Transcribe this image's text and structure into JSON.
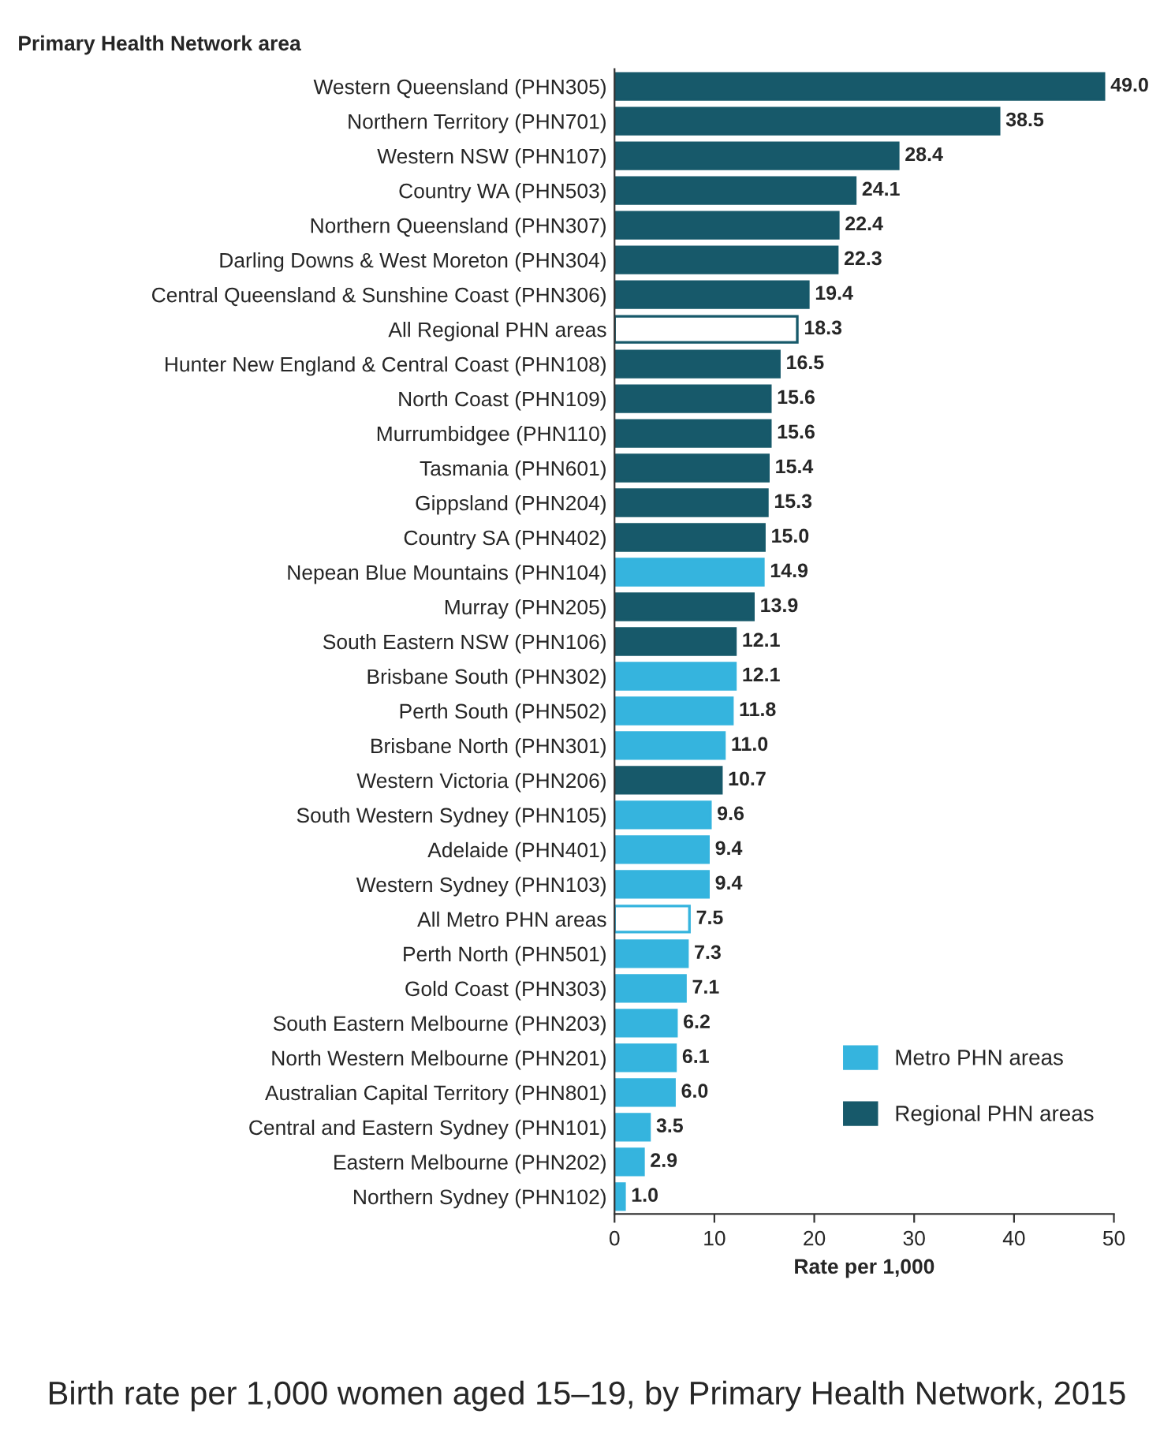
{
  "chart_data": {
    "type": "bar",
    "orientation": "horizontal",
    "title": "Birth rate per 1,000 women aged 15–19, by Primary Health Network, 2015",
    "ylabel": "Primary Health Network area",
    "xlabel": "Rate per 1,000",
    "categories": [
      "Western Queensland (PHN305)",
      "Northern Territory (PHN701)",
      "Western NSW (PHN107)",
      "Country WA (PHN503)",
      "Northern Queensland (PHN307)",
      "Darling Downs & West Moreton (PHN304)",
      "Central Queensland & Sunshine Coast (PHN306)",
      "All Regional PHN areas",
      "Hunter New England & Central Coast (PHN108)",
      "North Coast (PHN109)",
      "Murrumbidgee (PHN110)",
      "Tasmania (PHN601)",
      "Gippsland (PHN204)",
      "Country SA (PHN402)",
      "Nepean Blue Mountains (PHN104)",
      "Murray (PHN205)",
      "South Eastern NSW (PHN106)",
      "Brisbane South (PHN302)",
      "Perth South (PHN502)",
      "Brisbane North (PHN301)",
      "Western Victoria (PHN206)",
      "South Western Sydney (PHN105)",
      "Adelaide (PHN401)",
      "Western Sydney (PHN103)",
      "All Metro PHN areas",
      "Perth North (PHN501)",
      "Gold Coast (PHN303)",
      "South Eastern Melbourne (PHN203)",
      "North Western Melbourne (PHN201)",
      "Australian Capital Territory (PHN801)",
      "Central and Eastern Sydney (PHN101)",
      "Eastern Melbourne (PHN202)",
      "Northern Sydney (PHN102)"
    ],
    "series": [
      {
        "name": "Metro PHN areas",
        "color": "#35b4de",
        "values": [
          null,
          null,
          null,
          null,
          null,
          null,
          null,
          null,
          null,
          null,
          null,
          null,
          null,
          null,
          14.9,
          null,
          null,
          12.1,
          11.8,
          11.0,
          null,
          9.6,
          9.4,
          9.4,
          7.5,
          7.3,
          7.1,
          6.2,
          6.1,
          6.0,
          3.5,
          2.9,
          1.0
        ],
        "value_labels": [
          null,
          null,
          null,
          null,
          null,
          null,
          null,
          null,
          null,
          null,
          null,
          null,
          null,
          null,
          "14.9",
          null,
          null,
          "12.1",
          "11.8",
          "11.0",
          null,
          "9.6",
          "9.4",
          "9.4",
          "7.5",
          "7.3",
          "7.1",
          "6.2",
          "6.1",
          "6.0",
          "3.5",
          "2.9",
          "1.0"
        ],
        "colors": [
          null,
          null,
          null,
          null,
          null,
          null,
          null,
          null,
          null,
          null,
          null,
          null,
          null,
          null,
          "#35b4de",
          null,
          null,
          "#35b4de",
          "#35b4de",
          "#35b4de",
          null,
          "#35b4de",
          "#35b4de",
          "#35b4de",
          "#ffffff",
          "#35b4de",
          "#35b4de",
          "#35b4de",
          "#35b4de",
          "#35b4de",
          "#35b4de",
          "#35b4de",
          "#35b4de"
        ]
      },
      {
        "name": "Regional PHN areas",
        "color": "#17596a",
        "values": [
          49.0,
          38.5,
          28.4,
          24.1,
          22.4,
          22.3,
          19.4,
          18.3,
          16.5,
          15.6,
          15.6,
          15.4,
          15.3,
          15.0,
          null,
          13.9,
          12.1,
          null,
          null,
          null,
          10.7,
          null,
          null,
          null,
          null,
          null,
          null,
          null,
          null,
          null,
          null,
          null,
          null
        ],
        "value_labels": [
          "49.0",
          "38.5",
          "28.4",
          "24.1",
          "22.4",
          "22.3",
          "19.4",
          "18.3",
          "16.5",
          "15.6",
          "15.6",
          "15.4",
          "15.3",
          "15.0",
          null,
          "13.9",
          "12.1",
          null,
          null,
          null,
          "10.7",
          null,
          null,
          null,
          null,
          null,
          null,
          null,
          null,
          null,
          null,
          null,
          null
        ],
        "colors": [
          "#17596a",
          "#17596a",
          "#17596a",
          "#17596a",
          "#17596a",
          "#17596a",
          "#17596a",
          "#ffffff",
          "#17596a",
          "#17596a",
          "#17596a",
          "#17596a",
          "#17596a",
          "#17596a",
          null,
          "#17596a",
          "#17596a",
          null,
          null,
          null,
          "#17596a",
          null,
          null,
          null,
          null,
          null,
          null,
          null,
          null,
          null,
          null,
          null,
          null
        ]
      }
    ],
    "xlim": [
      0,
      50
    ],
    "xticks": [
      0,
      10,
      20,
      30,
      40,
      50
    ],
    "grid": false,
    "legend": "lower right"
  }
}
